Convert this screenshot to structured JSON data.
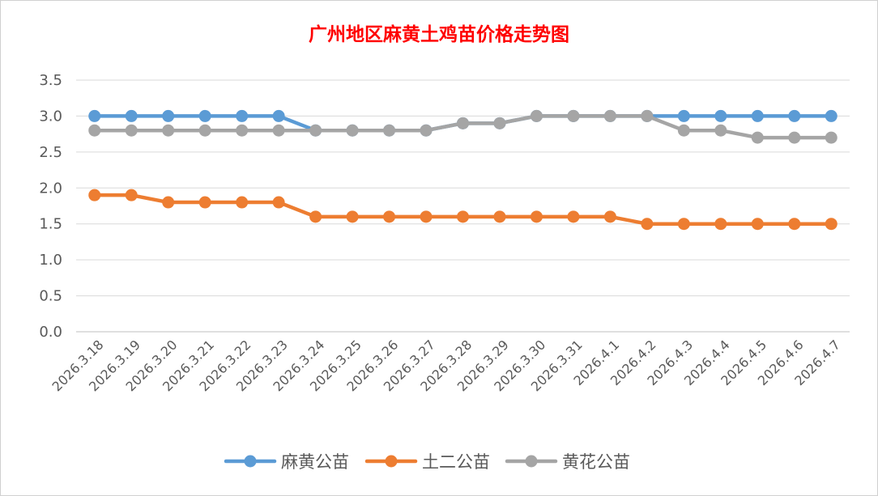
{
  "chart_data": {
    "type": "line",
    "title": "广州地区麻黄土鸡苗价格走势图",
    "title_color": "#ff0000",
    "xlabel": "",
    "ylabel": "",
    "categories": [
      "2026.3.18",
      "2026.3.19",
      "2026.3.20",
      "2026.3.21",
      "2026.3.22",
      "2026.3.23",
      "2026.3.24",
      "2026.3.25",
      "2026.3.26",
      "2026.3.27",
      "2026.3.28",
      "2026.3.29",
      "2026.3.30",
      "2026.3.31",
      "2026.4.1",
      "2026.4.2",
      "2026.4.3",
      "2026.4.4",
      "2026.4.5",
      "2026.4.6",
      "2026.4.7"
    ],
    "ylim": [
      0,
      3.5
    ],
    "yticks": [
      "0.0",
      "0.5",
      "1.0",
      "1.5",
      "2.0",
      "2.5",
      "3.0",
      "3.5"
    ],
    "grid": true,
    "legend_position": "bottom",
    "series": [
      {
        "name": "麻黄公苗",
        "color": "#5b9bd5",
        "values": [
          3.0,
          3.0,
          3.0,
          3.0,
          3.0,
          3.0,
          2.8,
          2.8,
          2.8,
          2.8,
          2.9,
          2.9,
          3.0,
          3.0,
          3.0,
          3.0,
          3.0,
          3.0,
          3.0,
          3.0,
          3.0
        ]
      },
      {
        "name": "土二公苗",
        "color": "#ed7d31",
        "values": [
          1.9,
          1.9,
          1.8,
          1.8,
          1.8,
          1.8,
          1.6,
          1.6,
          1.6,
          1.6,
          1.6,
          1.6,
          1.6,
          1.6,
          1.6,
          1.5,
          1.5,
          1.5,
          1.5,
          1.5,
          1.5
        ]
      },
      {
        "name": "黄花公苗",
        "color": "#a5a5a5",
        "values": [
          2.8,
          2.8,
          2.8,
          2.8,
          2.8,
          2.8,
          2.8,
          2.8,
          2.8,
          2.8,
          2.9,
          2.9,
          3.0,
          3.0,
          3.0,
          3.0,
          2.8,
          2.8,
          2.7,
          2.7,
          2.7
        ]
      }
    ]
  }
}
